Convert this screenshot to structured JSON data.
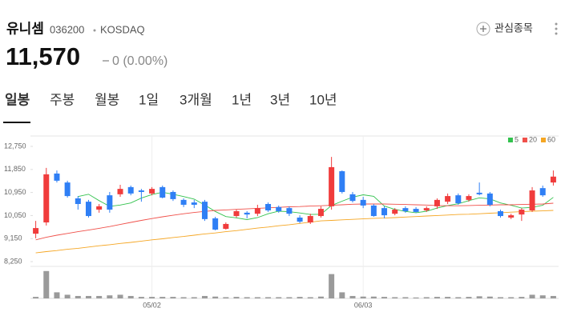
{
  "header": {
    "name": "유니셈",
    "code": "036200",
    "market": "KOSDAQ",
    "watch_button": "관심종목",
    "price": "11,570",
    "change": "0 (0.00%)"
  },
  "tabs": [
    "일봉",
    "주봉",
    "월봉",
    "1일",
    "3개월",
    "1년",
    "3년",
    "10년"
  ],
  "chart_data": {
    "type": "candlestick",
    "categories": [
      null,
      null,
      null,
      null,
      null,
      null,
      null,
      null,
      null,
      null,
      null,
      "05/02",
      null,
      null,
      null,
      null,
      null,
      null,
      null,
      null,
      null,
      null,
      null,
      null,
      null,
      null,
      null,
      null,
      null,
      null,
      null,
      "06/03",
      null,
      null,
      null,
      null,
      null,
      null,
      null,
      null,
      null,
      null,
      null,
      null,
      null,
      null,
      null,
      null,
      null,
      null
    ],
    "open": [
      9340,
      9780,
      11690,
      11340,
      10720,
      10590,
      10280,
      10840,
      10880,
      11160,
      11030,
      10910,
      11160,
      10970,
      10660,
      10560,
      10590,
      9940,
      9530,
      10030,
      10160,
      10120,
      10500,
      10380,
      10340,
      9970,
      9780,
      10030,
      10410,
      11780,
      10880,
      10660,
      10440,
      10340,
      10120,
      10340,
      10310,
      10250,
      10410,
      10590,
      10840,
      10660,
      10940,
      10910,
      10220,
      9970,
      10090,
      10250,
      11120,
      11340
    ],
    "high": [
      9840,
      11910,
      11810,
      11410,
      10810,
      10660,
      10500,
      10970,
      11250,
      11220,
      11090,
      11160,
      11220,
      11030,
      10720,
      10660,
      10660,
      10000,
      9780,
      10280,
      10220,
      10470,
      10560,
      10440,
      10410,
      10060,
      10120,
      10410,
      12340,
      11810,
      10970,
      10780,
      10500,
      10410,
      10340,
      10410,
      10380,
      10410,
      10720,
      10910,
      10910,
      10880,
      11340,
      10970,
      10280,
      10120,
      10340,
      11160,
      11220,
      11810
    ],
    "low": [
      9160,
      9660,
      11340,
      10750,
      10280,
      9970,
      10160,
      10160,
      10780,
      10840,
      10590,
      10840,
      10720,
      10620,
      10380,
      10340,
      9840,
      9470,
      9500,
      9970,
      9940,
      10030,
      10190,
      10160,
      10030,
      9750,
      9720,
      9970,
      10280,
      10910,
      10560,
      10340,
      10000,
      9940,
      10060,
      10160,
      10160,
      10190,
      10310,
      10500,
      10470,
      10590,
      10840,
      10410,
      9970,
      9910,
      9840,
      10190,
      10780,
      11220
    ],
    "close": [
      9560,
      11660,
      11410,
      10810,
      10500,
      10030,
      10410,
      10280,
      11090,
      10910,
      10970,
      11090,
      10750,
      10690,
      10470,
      10470,
      9910,
      9500,
      9720,
      10220,
      10090,
      10340,
      10250,
      10220,
      10120,
      9810,
      10030,
      10310,
      11940,
      10970,
      10620,
      10440,
      10030,
      10060,
      10280,
      10220,
      10190,
      10340,
      10660,
      10810,
      10530,
      10810,
      10880,
      10470,
      10030,
      10060,
      10280,
      11030,
      10840,
      11570
    ],
    "up_color": "#f03c3c",
    "down_color": "#2f7ff5",
    "series": [
      {
        "name": "5",
        "color": "#32c24d",
        "values": [
          null,
          null,
          null,
          null,
          10790,
          10880,
          10630,
          10410,
          10460,
          10540,
          10730,
          10870,
          10960,
          10880,
          10790,
          10690,
          10460,
          10210,
          10010,
          9960,
          9890,
          9970,
          10120,
          10220,
          10200,
          10150,
          10090,
          10100,
          10440,
          10610,
          10770,
          10860,
          10800,
          10420,
          10290,
          10210,
          10160,
          10220,
          10340,
          10440,
          10510,
          10630,
          10740,
          10700,
          10540,
          10450,
          10340,
          10370,
          10450,
          10760
        ]
      },
      {
        "name": "20",
        "color": "#f0504a",
        "values": [
          9100,
          9200,
          9280,
          9350,
          9420,
          9480,
          9550,
          9620,
          9700,
          9780,
          9860,
          9930,
          10000,
          10060,
          10120,
          10170,
          10210,
          10250,
          10270,
          10290,
          10310,
          10330,
          10350,
          10370,
          10390,
          10400,
          10420,
          10430,
          10450,
          10470,
          10490,
          10500,
          10500,
          10500,
          10490,
          10480,
          10470,
          10460,
          10440,
          10430,
          10430,
          10440,
          10450,
          10460,
          10470,
          10470,
          10480,
          10490,
          10500,
          10530
        ]
      },
      {
        "name": "60",
        "color": "#f5a623",
        "values": [
          8590,
          8640,
          8680,
          8730,
          8770,
          8820,
          8870,
          8910,
          8960,
          9000,
          9050,
          9100,
          9140,
          9190,
          9230,
          9280,
          9330,
          9370,
          9420,
          9460,
          9510,
          9560,
          9600,
          9650,
          9690,
          9740,
          9790,
          9840,
          9860,
          9880,
          9900,
          9920,
          9940,
          9950,
          9970,
          9990,
          10010,
          10030,
          10050,
          10070,
          10090,
          10100,
          10120,
          10140,
          10160,
          10180,
          10200,
          10220,
          10230,
          10250
        ]
      }
    ],
    "volume": [
      5,
      90,
      20,
      12,
      8,
      8,
      8,
      10,
      12,
      8,
      5,
      5,
      5,
      5,
      4,
      4,
      8,
      6,
      4,
      5,
      4,
      4,
      4,
      4,
      4,
      5,
      4,
      6,
      80,
      20,
      8,
      6,
      6,
      5,
      4,
      4,
      3,
      4,
      5,
      5,
      4,
      5,
      7,
      6,
      4,
      4,
      5,
      12,
      10,
      8
    ],
    "volume_color": "#9a9a9a",
    "volume_ylim": [
      0,
      100
    ],
    "ylim": [
      8250,
      12750
    ],
    "yticks": [
      {
        "value": 12750,
        "label": "12,750"
      },
      {
        "value": 11850,
        "label": "11,850"
      },
      {
        "value": 10950,
        "label": "10,950"
      },
      {
        "value": 10050,
        "label": "10,050"
      },
      {
        "value": 9150,
        "label": "9,150"
      },
      {
        "value": 8250,
        "label": "8,250"
      }
    ]
  }
}
